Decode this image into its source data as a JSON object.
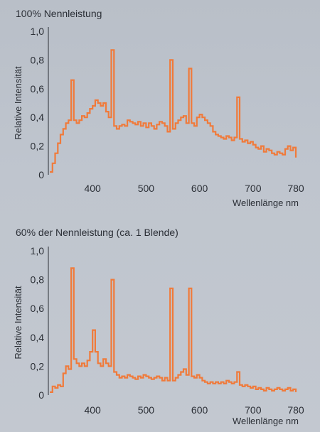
{
  "chart_data": [
    {
      "type": "line",
      "title": "100% Nennleistung",
      "xlabel": "Wellenlänge nm",
      "ylabel": "Relative Intensität",
      "xlim": [
        320,
        780
      ],
      "ylim": [
        0,
        1.0
      ],
      "xticks": [
        "400",
        "500",
        "600",
        "700",
        "780"
      ],
      "yticks": [
        "0",
        "0,2",
        "0,4",
        "0,6",
        "0,8",
        "1,0"
      ],
      "grid": false,
      "series": [
        {
          "color": "#f07a3a",
          "x": [
            320,
            325,
            330,
            335,
            340,
            345,
            350,
            355,
            360,
            365,
            370,
            375,
            380,
            385,
            390,
            395,
            400,
            405,
            410,
            415,
            420,
            425,
            430,
            435,
            440,
            445,
            450,
            455,
            460,
            465,
            470,
            475,
            480,
            485,
            490,
            495,
            500,
            505,
            510,
            515,
            520,
            525,
            530,
            535,
            540,
            545,
            550,
            555,
            560,
            565,
            570,
            575,
            580,
            585,
            590,
            595,
            600,
            605,
            610,
            615,
            620,
            625,
            630,
            635,
            640,
            645,
            650,
            655,
            660,
            665,
            670,
            675,
            680,
            685,
            690,
            695,
            700,
            705,
            710,
            715,
            720,
            725,
            730,
            735,
            740,
            745,
            750,
            755,
            760,
            765,
            770,
            775,
            780
          ],
          "y": [
            0.02,
            0.08,
            0.15,
            0.22,
            0.28,
            0.32,
            0.36,
            0.38,
            0.66,
            0.38,
            0.36,
            0.38,
            0.41,
            0.4,
            0.43,
            0.46,
            0.48,
            0.52,
            0.5,
            0.48,
            0.5,
            0.44,
            0.4,
            0.87,
            0.34,
            0.32,
            0.34,
            0.35,
            0.34,
            0.38,
            0.37,
            0.36,
            0.35,
            0.37,
            0.34,
            0.36,
            0.33,
            0.36,
            0.34,
            0.32,
            0.35,
            0.37,
            0.36,
            0.34,
            0.3,
            0.8,
            0.32,
            0.36,
            0.38,
            0.4,
            0.41,
            0.36,
            0.74,
            0.36,
            0.34,
            0.4,
            0.42,
            0.4,
            0.38,
            0.36,
            0.34,
            0.3,
            0.28,
            0.27,
            0.26,
            0.25,
            0.27,
            0.26,
            0.24,
            0.26,
            0.54,
            0.25,
            0.23,
            0.24,
            0.22,
            0.23,
            0.21,
            0.19,
            0.18,
            0.2,
            0.16,
            0.18,
            0.17,
            0.15,
            0.14,
            0.16,
            0.15,
            0.14,
            0.18,
            0.2,
            0.17,
            0.19,
            0.12
          ]
        }
      ]
    },
    {
      "type": "line",
      "title": "60% der Nennleistung (ca. 1 Blende)",
      "xlabel": "Wellenlänge nm",
      "ylabel": "Relative Intensität",
      "xlim": [
        320,
        780
      ],
      "ylim": [
        0,
        1.0
      ],
      "xticks": [
        "400",
        "500",
        "600",
        "700",
        "780"
      ],
      "yticks": [
        "0",
        "0,2",
        "0,4",
        "0,6",
        "0,8",
        "1,0"
      ],
      "grid": false,
      "series": [
        {
          "color": "#f07a3a",
          "x": [
            320,
            325,
            330,
            335,
            340,
            345,
            350,
            355,
            360,
            365,
            370,
            375,
            380,
            385,
            390,
            395,
            400,
            405,
            410,
            415,
            420,
            425,
            430,
            435,
            440,
            445,
            450,
            455,
            460,
            465,
            470,
            475,
            480,
            485,
            490,
            495,
            500,
            505,
            510,
            515,
            520,
            525,
            530,
            535,
            540,
            545,
            550,
            555,
            560,
            565,
            570,
            575,
            580,
            585,
            590,
            595,
            600,
            605,
            610,
            615,
            620,
            625,
            630,
            635,
            640,
            645,
            650,
            655,
            660,
            665,
            670,
            675,
            680,
            685,
            690,
            695,
            700,
            705,
            710,
            715,
            720,
            725,
            730,
            735,
            740,
            745,
            750,
            755,
            760,
            765,
            770,
            775,
            780
          ],
          "y": [
            0.02,
            0.06,
            0.05,
            0.07,
            0.06,
            0.15,
            0.2,
            0.18,
            0.88,
            0.25,
            0.22,
            0.2,
            0.22,
            0.2,
            0.24,
            0.3,
            0.45,
            0.3,
            0.22,
            0.2,
            0.25,
            0.22,
            0.2,
            0.8,
            0.16,
            0.14,
            0.12,
            0.13,
            0.12,
            0.14,
            0.13,
            0.12,
            0.11,
            0.13,
            0.12,
            0.14,
            0.13,
            0.12,
            0.11,
            0.12,
            0.13,
            0.12,
            0.1,
            0.12,
            0.1,
            0.74,
            0.1,
            0.12,
            0.14,
            0.16,
            0.18,
            0.14,
            0.74,
            0.13,
            0.12,
            0.14,
            0.12,
            0.1,
            0.09,
            0.08,
            0.09,
            0.08,
            0.09,
            0.08,
            0.09,
            0.08,
            0.1,
            0.09,
            0.08,
            0.09,
            0.16,
            0.07,
            0.06,
            0.07,
            0.06,
            0.05,
            0.06,
            0.04,
            0.05,
            0.04,
            0.03,
            0.05,
            0.04,
            0.03,
            0.04,
            0.05,
            0.04,
            0.03,
            0.04,
            0.05,
            0.03,
            0.04,
            0.02
          ]
        }
      ]
    }
  ]
}
